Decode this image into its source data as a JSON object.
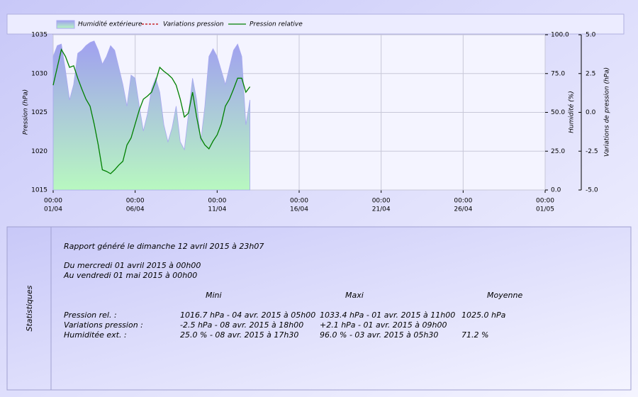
{
  "chart_data": {
    "type": "line-area",
    "ylabel": "Pression (hPa)",
    "y2label": "Humidité (%)",
    "y3label": "Variations de pression (hPa)",
    "xlim": [
      0,
      30
    ],
    "xticks": [
      {
        "value": 0,
        "label": "00:00",
        "date": "01/04"
      },
      {
        "value": 5,
        "label": "00:00",
        "date": "06/04"
      },
      {
        "value": 10,
        "label": "00:00",
        "date": "11/04"
      },
      {
        "value": 15,
        "label": "00:00",
        "date": "16/04"
      },
      {
        "value": 20,
        "label": "00:00",
        "date": "21/04"
      },
      {
        "value": 25,
        "label": "00:00",
        "date": "26/04"
      },
      {
        "value": 30,
        "label": "00:00",
        "date": "01/05"
      }
    ],
    "ylim": [
      1015,
      1035
    ],
    "yticks": [
      1015,
      1020,
      1025,
      1030,
      1035
    ],
    "y2lim": [
      0,
      100
    ],
    "y2ticks": [
      {
        "value": 0,
        "label": "0.0"
      },
      {
        "value": 25,
        "label": "25.0"
      },
      {
        "value": 50,
        "label": "50.0"
      },
      {
        "value": 75,
        "label": "75.0"
      },
      {
        "value": 100,
        "label": "100.0"
      }
    ],
    "y3lim": [
      -5,
      5
    ],
    "y3ticks": [
      {
        "value": -5,
        "label": "-5.0"
      },
      {
        "value": -2.5,
        "label": "-2.5"
      },
      {
        "value": 0,
        "label": "0.0"
      },
      {
        "value": 2.5,
        "label": "2.5"
      },
      {
        "value": 5,
        "label": "5.0"
      }
    ],
    "grid": true,
    "x": [
      0,
      0.25,
      0.5,
      0.75,
      1,
      1.25,
      1.5,
      1.75,
      2,
      2.25,
      2.5,
      2.75,
      3,
      3.25,
      3.5,
      3.75,
      4,
      4.25,
      4.5,
      4.75,
      5,
      5.25,
      5.5,
      5.75,
      6,
      6.25,
      6.5,
      6.75,
      7,
      7.25,
      7.5,
      7.75,
      8,
      8.25,
      8.5,
      8.75,
      9,
      9.25,
      9.5,
      9.75,
      10,
      10.25,
      10.5,
      10.75,
      11,
      11.25,
      11.5,
      11.75,
      12
    ],
    "series": [
      {
        "name": "Humidité extérieure",
        "kind": "area",
        "axis": "y2",
        "color": "#a8a8f0",
        "values": [
          86,
          93,
          94,
          77,
          58,
          68,
          88,
          90,
          93,
          95,
          96,
          90,
          81,
          86,
          93,
          90,
          79,
          68,
          54,
          74,
          72,
          54,
          38,
          49,
          65,
          72,
          63,
          42,
          31,
          40,
          54,
          31,
          26,
          49,
          72,
          58,
          31,
          54,
          86,
          91,
          86,
          77,
          68,
          79,
          90,
          94,
          86,
          42,
          58
        ]
      },
      {
        "name": "Variations pression",
        "kind": "line",
        "axis": "y3",
        "color": "#c00000",
        "dashed": true
      },
      {
        "name": "Pression relative",
        "kind": "line",
        "axis": "y",
        "color": "#008000",
        "values": [
          1028.5,
          1030.8,
          1033.1,
          1032.2,
          1030.8,
          1031,
          1029.4,
          1028,
          1026.7,
          1025.8,
          1023.5,
          1020.8,
          1017.6,
          1017.4,
          1017.1,
          1017.6,
          1018.2,
          1018.7,
          1020.8,
          1021.7,
          1023.5,
          1025.3,
          1026.7,
          1027.1,
          1027.6,
          1029,
          1030.8,
          1030.3,
          1029.9,
          1029.4,
          1028.5,
          1026.7,
          1024.4,
          1024.9,
          1027.6,
          1024.4,
          1021.7,
          1020.8,
          1020.3,
          1021.3,
          1022.1,
          1023.5,
          1025.8,
          1026.7,
          1028,
          1029.4,
          1029.4,
          1027.6,
          1028.3
        ]
      }
    ]
  },
  "stats": {
    "side_label": "Statistiques",
    "generated": "Rapport généré le dimanche 12 avril 2015 à 23h07",
    "from": "Du mercredi 01 avril 2015 à 00h00",
    "to": "Au vendredi 01 mai 2015 à 00h00",
    "headers": [
      "Mini",
      "Maxi",
      "Moyenne"
    ],
    "rows": [
      {
        "label": "Pression rel. :",
        "min": "1016.7 hPa - 04 avr. 2015 à 05h00",
        "max": "1033.4 hPa - 01 avr. 2015 à 11h00",
        "mean": "1025.0 hPa"
      },
      {
        "label": "Variations pression :",
        "min": "-2.5 hPa - 08 avr. 2015 à 18h00",
        "max": "+2.1 hPa - 01 avr. 2015 à 09h00",
        "mean": ""
      },
      {
        "label": "Humiditée ext. :",
        "min": "25.0 % - 08 avr. 2015 à 17h30",
        "max": "96.0 % - 03 avr. 2015 à 05h30",
        "mean": "71.2 %"
      }
    ]
  }
}
